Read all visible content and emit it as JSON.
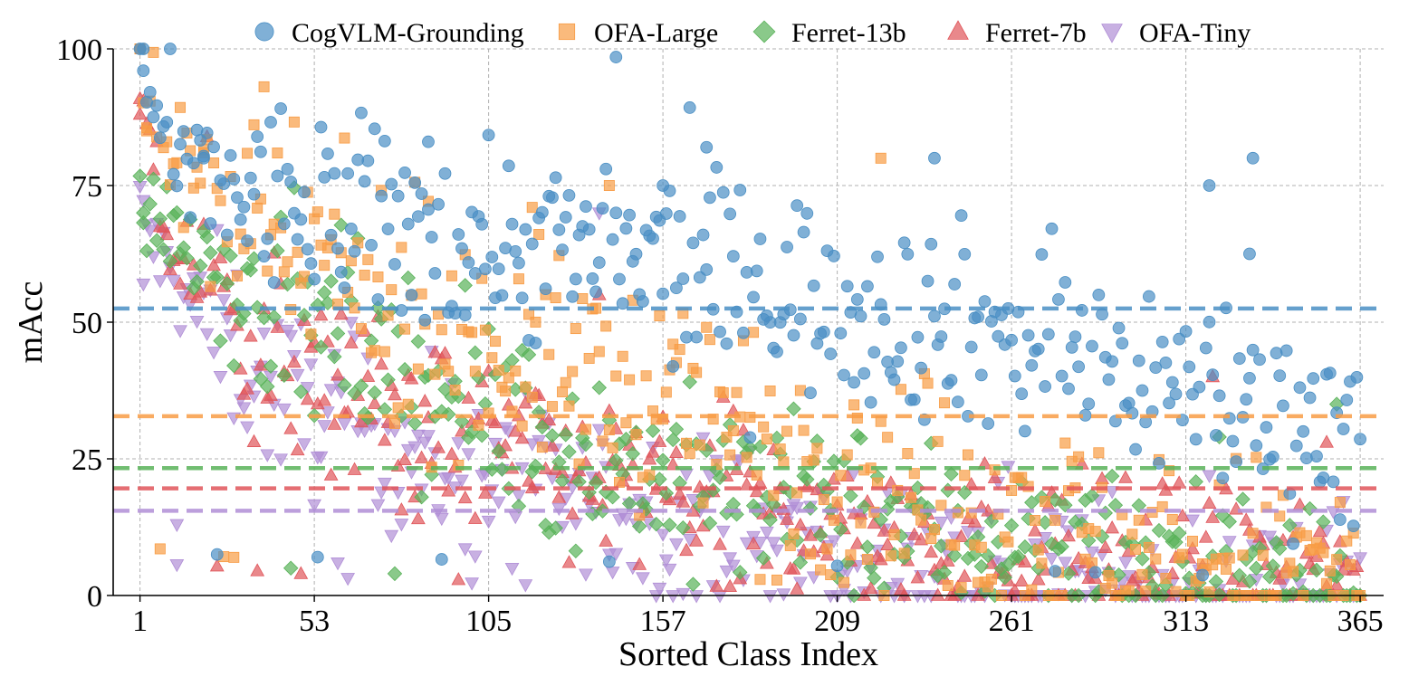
{
  "chart_data": {
    "type": "scatter",
    "xlabel": "Sorted Class Index",
    "ylabel": "mAcc",
    "xlim": [
      -7,
      372
    ],
    "ylim": [
      0,
      100
    ],
    "xticks": [
      1,
      53,
      105,
      157,
      209,
      261,
      313,
      365
    ],
    "yticks": [
      0,
      25,
      50,
      75,
      100
    ],
    "grid": true,
    "legend_position": "top",
    "series": [
      {
        "name": "CogVLM-Grounding",
        "marker": "circle",
        "color": "#4a8fc4",
        "mean": 52.5,
        "profile": [
          [
            1,
            100
          ],
          [
            10,
            78
          ],
          [
            40,
            72
          ],
          [
            80,
            67
          ],
          [
            130,
            63
          ],
          [
            170,
            59
          ],
          [
            210,
            54
          ],
          [
            260,
            47
          ],
          [
            300,
            40
          ],
          [
            365,
            30
          ]
        ],
        "spread": 9,
        "extra_points": [
          [
            2,
            96
          ],
          [
            143,
            98.5
          ],
          [
            157,
            75
          ],
          [
            170,
            82
          ],
          [
            238,
            80
          ],
          [
            320,
            75
          ],
          [
            333,
            80
          ],
          [
            332,
            62.5
          ],
          [
            20,
            80
          ],
          [
            87,
            83
          ]
        ]
      },
      {
        "name": "OFA-Large",
        "marker": "square",
        "color": "#f89c45",
        "mean": 32.8,
        "profile": [
          [
            1,
            100
          ],
          [
            10,
            78
          ],
          [
            40,
            65
          ],
          [
            80,
            51
          ],
          [
            130,
            41
          ],
          [
            170,
            33
          ],
          [
            210,
            24
          ],
          [
            260,
            15
          ],
          [
            300,
            8
          ],
          [
            365,
            3
          ]
        ],
        "spread": 10,
        "extra_points": [
          [
            1,
            100
          ],
          [
            3,
            85
          ],
          [
            20,
            81
          ],
          [
            141,
            75
          ],
          [
            222,
            80
          ],
          [
            118,
            71
          ]
        ]
      },
      {
        "name": "Ferret-13b",
        "marker": "diamond",
        "color": "#58b258",
        "mean": 23.3,
        "profile": [
          [
            1,
            74
          ],
          [
            10,
            68
          ],
          [
            40,
            52
          ],
          [
            80,
            39
          ],
          [
            130,
            26
          ],
          [
            170,
            20
          ],
          [
            210,
            15
          ],
          [
            260,
            10
          ],
          [
            300,
            6
          ],
          [
            365,
            2
          ]
        ],
        "spread": 8,
        "extra_points": [
          [
            2,
            70
          ],
          [
            358,
            35
          ],
          [
            323,
            29
          ]
        ]
      },
      {
        "name": "Ferret-7b",
        "marker": "triangle-up",
        "color": "#e0555a",
        "mean": 19.6,
        "profile": [
          [
            1,
            88
          ],
          [
            10,
            64
          ],
          [
            40,
            42
          ],
          [
            80,
            32
          ],
          [
            130,
            22
          ],
          [
            170,
            17
          ],
          [
            210,
            12
          ],
          [
            260,
            8
          ],
          [
            300,
            5
          ],
          [
            365,
            1
          ]
        ],
        "spread": 8,
        "extra_points": [
          [
            1,
            88
          ],
          [
            138,
            55
          ],
          [
            321,
            40
          ],
          [
            355,
            28
          ]
        ]
      },
      {
        "name": "OFA-Tiny",
        "marker": "triangle-down",
        "color": "#b08ed6",
        "mean": 15.5,
        "profile": [
          [
            1,
            70
          ],
          [
            10,
            58
          ],
          [
            40,
            38
          ],
          [
            80,
            27
          ],
          [
            130,
            17
          ],
          [
            170,
            12
          ],
          [
            210,
            7
          ],
          [
            260,
            4
          ],
          [
            300,
            2
          ],
          [
            365,
            0
          ]
        ],
        "spread": 8,
        "extra_points": [
          [
            2,
            57
          ],
          [
            12,
            13
          ],
          [
            138,
            70
          ],
          [
            60,
            6
          ]
        ]
      }
    ]
  }
}
